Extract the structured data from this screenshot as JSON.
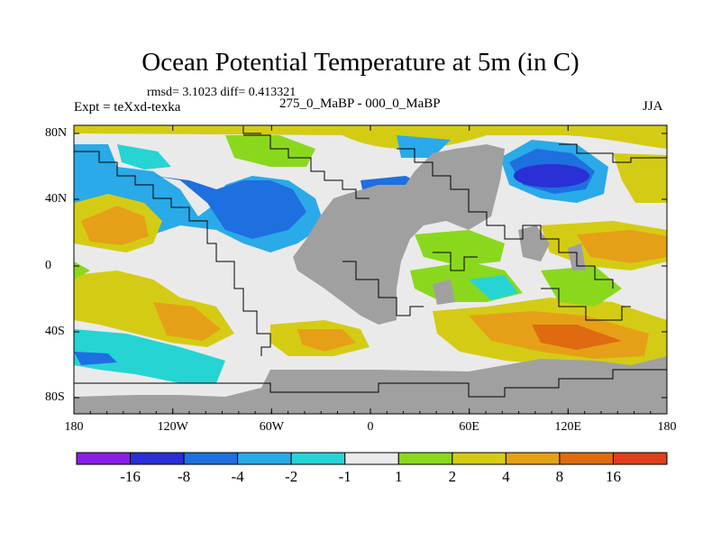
{
  "title": "Ocean Potential Temperature at 5m (in C)",
  "stats": "rmsd= 3.1023 diff= 0.413321",
  "expt": "Expt = teXxd-texka",
  "subtitle": "275_0_MaBP - 000_0_MaBP",
  "season": "JJA",
  "x_axis": {
    "ticks": [
      "180",
      "120W",
      "60W",
      "0",
      "60E",
      "120E",
      "180"
    ]
  },
  "y_axis": {
    "ticks": [
      "80N",
      "40N",
      "0",
      "40S",
      "80S"
    ]
  },
  "colorbar": {
    "labels": [
      "-16",
      "-8",
      "-4",
      "-2",
      "-1",
      "1",
      "2",
      "4",
      "8",
      "16"
    ],
    "colors": [
      "#8a1ee8",
      "#2a2fd6",
      "#1e6fe0",
      "#2aaae8",
      "#26d4d4",
      "#eaeaea",
      "#8ad81e",
      "#d4cc14",
      "#e6a018",
      "#e06a10",
      "#e0401a"
    ]
  },
  "map_colors": {
    "land": "#a0a0a0",
    "coast": "#000000"
  }
}
